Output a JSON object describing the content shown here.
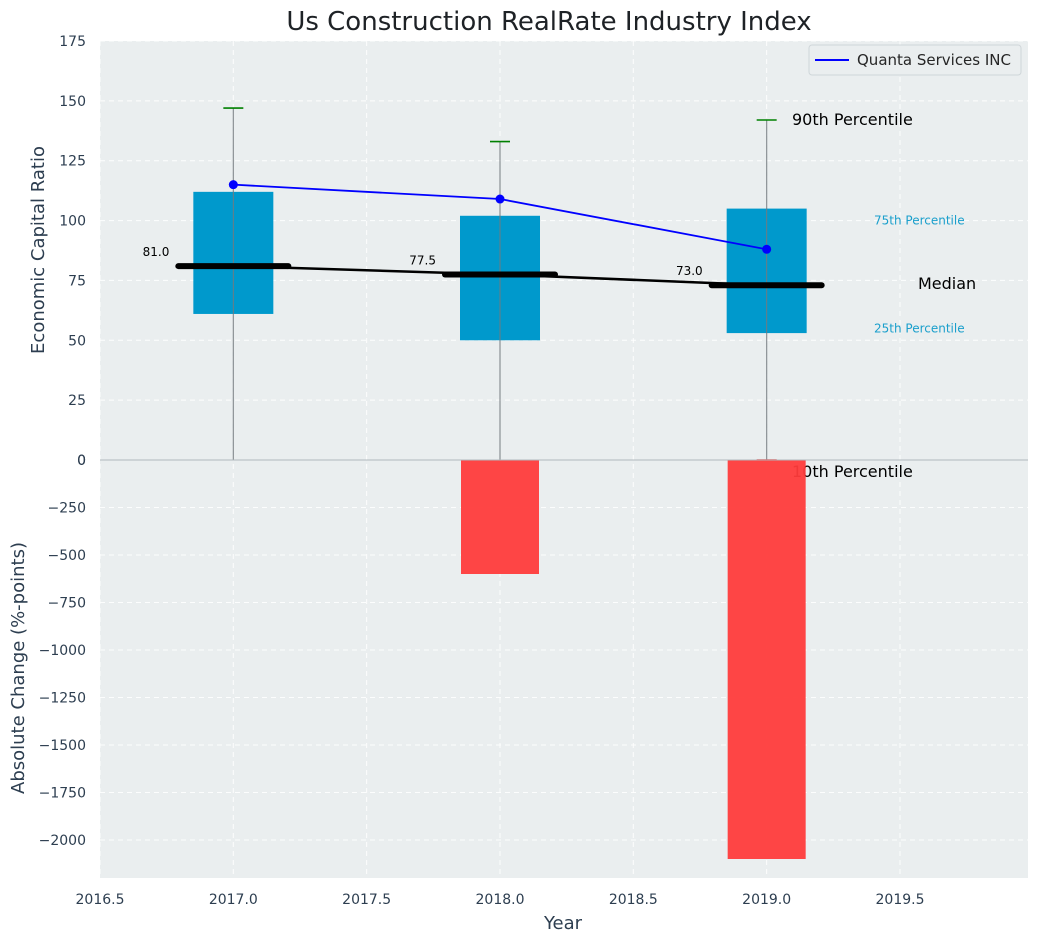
{
  "chart_data": [
    {
      "type": "box",
      "title": "Us Construction RealRate Industry Index",
      "ylabel": "Economic Capital Ratio",
      "ylim": [
        0,
        175
      ],
      "yticks": [
        0,
        25,
        50,
        75,
        100,
        125,
        150,
        175
      ],
      "x": [
        2017,
        2018,
        2019
      ],
      "p90": [
        147,
        133,
        142
      ],
      "p75": [
        112,
        102,
        105
      ],
      "median": [
        81.0,
        77.5,
        73.0
      ],
      "median_labels": [
        "81.0",
        "77.5",
        "73.0"
      ],
      "p25": [
        61,
        50,
        53
      ],
      "p10": [
        0,
        0,
        0
      ],
      "series": [
        {
          "name": "Quanta Services INC",
          "values": [
            115,
            109,
            88
          ]
        }
      ],
      "annotations": {
        "p90": "90th Percentile",
        "p75": "75th Percentile",
        "median": "Median",
        "p25": "25th Percentile",
        "p10": "10th Percentile"
      },
      "legend": "top-right",
      "grid": true
    },
    {
      "type": "bar",
      "ylabel": "Absolute Change (%-points)",
      "xlabel": "Year",
      "ylim": [
        -2200,
        0
      ],
      "yticks": [
        0,
        -250,
        -500,
        -750,
        -1000,
        -1250,
        -1500,
        -1750,
        -2000
      ],
      "x": [
        2017,
        2018,
        2019
      ],
      "values": [
        0,
        -600,
        -2100
      ],
      "grid": true
    }
  ],
  "shared_x": {
    "xlim": [
      2016.5,
      2019.98
    ],
    "xticks": [
      "2016.5",
      "2017.0",
      "2017.5",
      "2018.0",
      "2018.5",
      "2019.0",
      "2019.5"
    ]
  },
  "colors": {
    "background": "#eaeeef",
    "box": "#0099cc",
    "median": "#000000",
    "series_line": "#0000ff",
    "p90_cap": "#008000",
    "p10_cap": "#ff0000",
    "bar": "#ff3b3b",
    "text": "#2d3e50",
    "annot_percentile": "#1a9fcc"
  }
}
